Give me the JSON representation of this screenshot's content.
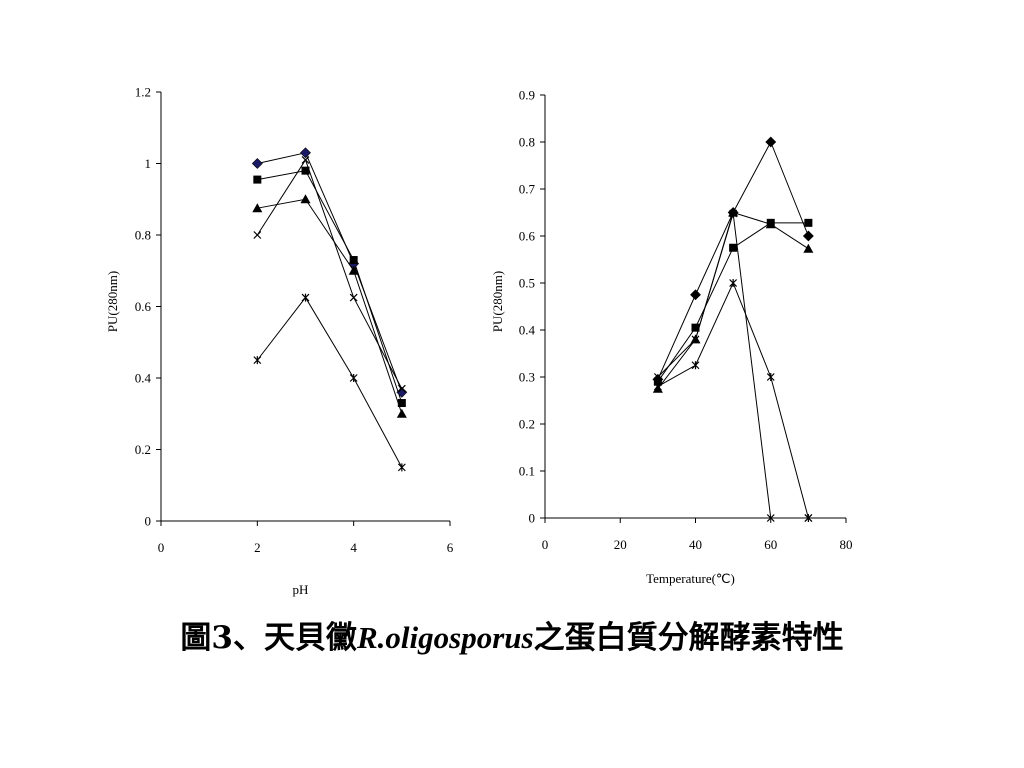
{
  "caption": {
    "prefix": "圖3、天貝黴",
    "species": "R.oligosporus",
    "suffix": "之蛋白質分解酵素特性"
  },
  "colors": {
    "axis": "#000000",
    "line": "#000000",
    "diamond_ph": "#1a1a66"
  },
  "chart_data": [
    {
      "type": "line",
      "xlabel": "pH",
      "ylabel": "PU(280nm)",
      "xlim": [
        0,
        6
      ],
      "ylim": [
        0,
        1.2
      ],
      "xticks": [
        0,
        2,
        4,
        6
      ],
      "yticks": [
        0,
        0.2,
        0.4,
        0.6,
        0.8,
        1,
        1.2
      ],
      "xtick_labels": [
        "0",
        "2",
        "4",
        "6"
      ],
      "ytick_labels": [
        "0",
        "0.2",
        "0.4",
        "0.6",
        "0.8",
        "1",
        "1.2"
      ],
      "x": [
        2,
        3,
        4,
        5
      ],
      "series": [
        {
          "marker": "diamond",
          "values": [
            1.0,
            1.03,
            0.72,
            0.36
          ]
        },
        {
          "marker": "square",
          "values": [
            0.955,
            0.98,
            0.73,
            0.33
          ]
        },
        {
          "marker": "triangle",
          "values": [
            0.875,
            0.9,
            0.7,
            0.3
          ]
        },
        {
          "marker": "x",
          "values": [
            0.8,
            1.01,
            0.625,
            0.37
          ]
        },
        {
          "marker": "star",
          "values": [
            0.45,
            0.625,
            0.4,
            0.15
          ]
        }
      ]
    },
    {
      "type": "line",
      "xlabel": "Temperature(℃)",
      "ylabel": "PU(280nm)",
      "xlim": [
        0,
        80
      ],
      "ylim": [
        0,
        0.9
      ],
      "xticks": [
        0,
        20,
        40,
        60,
        80
      ],
      "yticks": [
        0,
        0.1,
        0.2,
        0.3,
        0.4,
        0.5,
        0.6,
        0.7,
        0.8,
        0.9
      ],
      "xtick_labels": [
        "0",
        "20",
        "40",
        "60",
        "80"
      ],
      "ytick_labels": [
        "0",
        "0.1",
        "0.2",
        "0.3",
        "0.4",
        "0.5",
        "0.6",
        "0.7",
        "0.8",
        "0.9"
      ],
      "x": [
        30,
        40,
        50,
        60,
        70
      ],
      "series": [
        {
          "marker": "diamond",
          "values": [
            0.295,
            0.475,
            0.65,
            0.8,
            0.6
          ]
        },
        {
          "marker": "square",
          "values": [
            0.29,
            0.405,
            0.575,
            0.628,
            0.628
          ]
        },
        {
          "marker": "triangle",
          "values": [
            0.275,
            0.38,
            0.65,
            0.625,
            0.573
          ]
        },
        {
          "marker": "x",
          "values": [
            0.3,
            0.38,
            0.648,
            0.0,
            0.0
          ]
        },
        {
          "marker": "star",
          "values": [
            0.28,
            0.325,
            0.5,
            0.3,
            0.0
          ]
        }
      ]
    }
  ]
}
